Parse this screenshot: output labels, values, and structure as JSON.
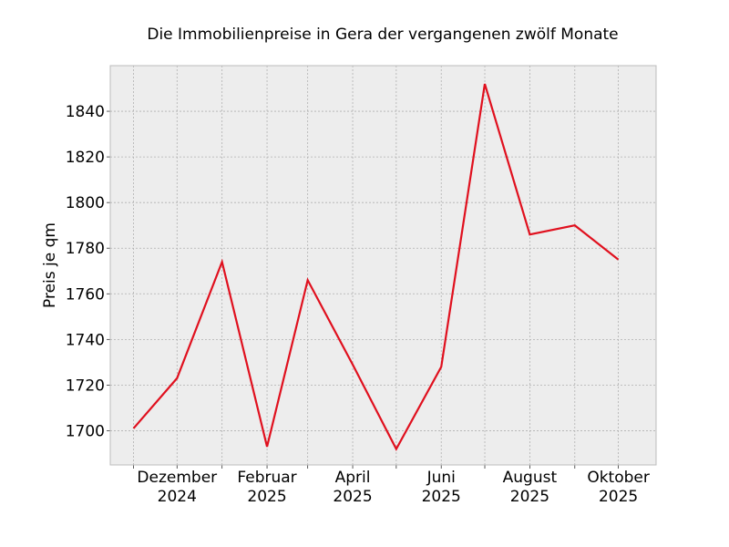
{
  "chart_data": {
    "type": "line",
    "title": "Die Immobilienpreise in Gera der vergangenen zwölf Monate",
    "xlabel": "",
    "ylabel": "Preis je qm",
    "x": [
      "2024-11",
      "2024-12",
      "2025-01",
      "2025-02",
      "2025-03",
      "2025-04",
      "2025-05",
      "2025-06",
      "2025-07",
      "2025-08",
      "2025-09",
      "2025-10"
    ],
    "x_tick_labels": [
      {
        "x": "2024-12",
        "line1": "Dezember",
        "line2": "2024"
      },
      {
        "x": "2025-02",
        "line1": "Februar",
        "line2": "2025"
      },
      {
        "x": "2025-04",
        "line1": "April",
        "line2": "2025"
      },
      {
        "x": "2025-06",
        "line1": "Juni",
        "line2": "2025"
      },
      {
        "x": "2025-08",
        "line1": "August",
        "line2": "2025"
      },
      {
        "x": "2025-10",
        "line1": "Oktober",
        "line2": "2025"
      }
    ],
    "y_ticks": [
      1700,
      1720,
      1740,
      1760,
      1780,
      1800,
      1820,
      1840
    ],
    "ylim": [
      1685,
      1860
    ],
    "xlim": [
      "2024-10-16",
      "2025-10-27"
    ],
    "series": [
      {
        "values": [
          1701,
          1723,
          1774,
          1693,
          1766,
          1729,
          1692,
          1728,
          1852,
          1786,
          1790,
          1775
        ]
      }
    ],
    "grid": true,
    "colors": {
      "line": "#e0101e",
      "plot_bg": "#ededed",
      "grid": "#b0b0b0",
      "frame": "#bcbcbc"
    }
  }
}
